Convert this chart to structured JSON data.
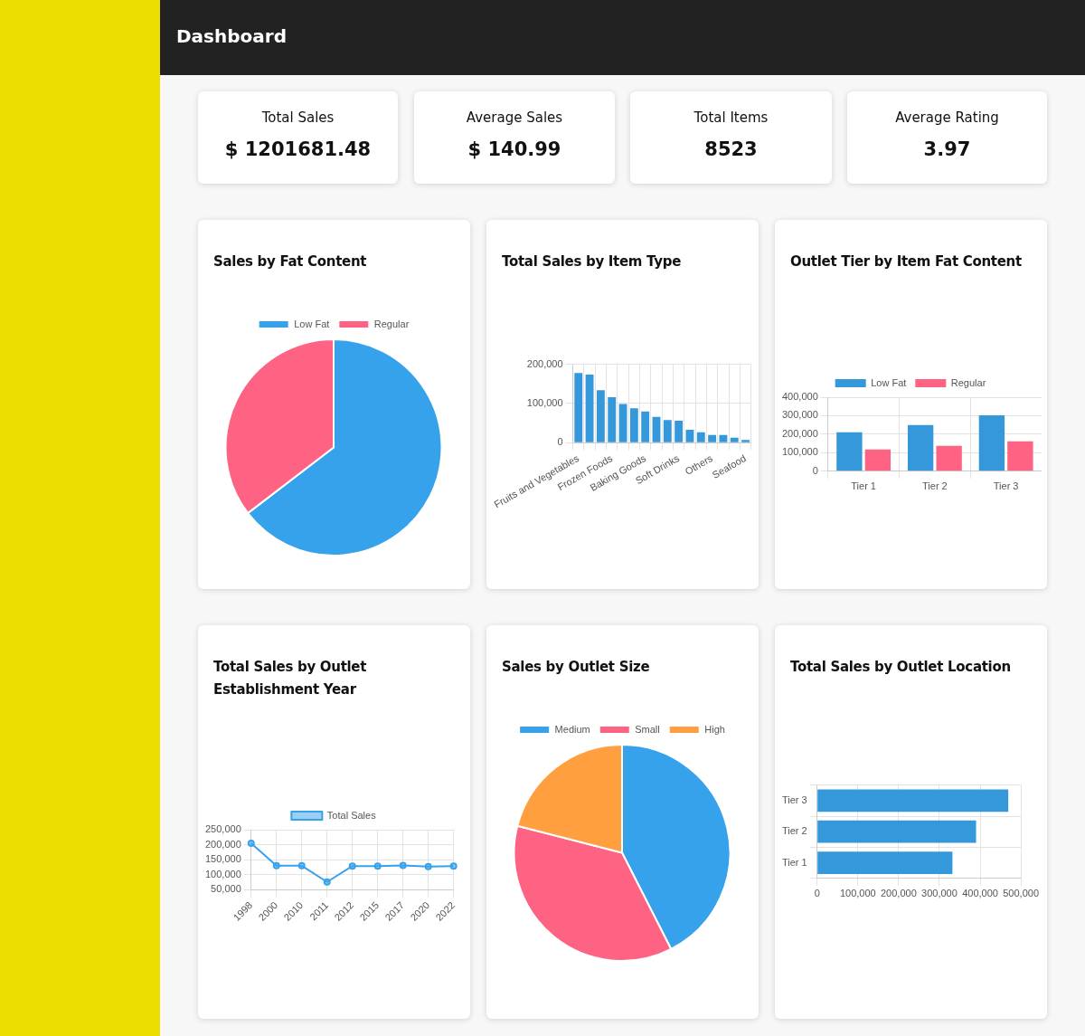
{
  "chart_data": [
    {
      "type": "other",
      "title": "Dashboard"
    },
    {
      "type": "other",
      "title": "Total Sales",
      "annotations": [
        "$ 1201681.48"
      ]
    },
    {
      "type": "other",
      "title": "Average Sales",
      "annotations": [
        "$ 140.99"
      ]
    },
    {
      "type": "other",
      "title": "Total Items",
      "annotations": [
        "8523"
      ]
    },
    {
      "type": "other",
      "title": "Average Rating",
      "annotations": [
        "3.97"
      ]
    },
    {
      "type": "pie",
      "title": "Sales by Fat Content",
      "categories": [
        "Low Fat",
        "Regular"
      ],
      "values": [
        64.6,
        35.4
      ],
      "colors": [
        "#36a2eb",
        "#ff6384"
      ],
      "legend": "top"
    },
    {
      "type": "bar",
      "title": "Total Sales by Item Type",
      "categories": [
        "Fruits and Vegetables",
        null,
        null,
        "Frozen Foods",
        null,
        null,
        "Baking Goods",
        null,
        null,
        "Soft Drinks",
        null,
        null,
        "Others",
        null,
        null,
        "Seafood"
      ],
      "values": [
        178000,
        174000,
        134000,
        116000,
        99000,
        88000,
        80000,
        66000,
        58000,
        56000,
        33000,
        27000,
        20000,
        20000,
        13000,
        7000
      ],
      "color": "#3498db",
      "ylim": [
        0,
        200000
      ],
      "yticks": [
        0,
        {
          "value": 100000,
          "label": "100,000"
        },
        {
          "value": 200000,
          "label": "200,000"
        }
      ],
      "grid": true,
      "legend": false
    },
    {
      "type": "bar",
      "title": "Outlet Tier by Item Fat Content",
      "categories": [
        "Tier 1",
        "Tier 2",
        "Tier 3"
      ],
      "series": [
        {
          "name": "Low Fat",
          "color": "#3498db",
          "values": [
            210000,
            250000,
            302000
          ]
        },
        {
          "name": "Regular",
          "color": "#ff6384",
          "values": [
            117000,
            137000,
            162000
          ]
        }
      ],
      "ylim": [
        0,
        400000
      ],
      "yticks": [
        0,
        {
          "value": 100000,
          "label": "100,000"
        },
        {
          "value": 200000,
          "label": "200,000"
        },
        {
          "value": 300000,
          "label": "300,000"
        },
        {
          "value": 400000,
          "label": "400,000"
        }
      ],
      "grid": true,
      "legend": "top"
    },
    {
      "type": "line",
      "title": "Total Sales by Outlet Establishment Year",
      "categories": [
        "1998",
        "2000",
        "2010",
        "2011",
        "2012",
        "2015",
        "2017",
        "2020",
        "2022"
      ],
      "series": [
        {
          "name": "Total Sales",
          "color": "#36a2eb",
          "values": [
            205000,
            130000,
            130000,
            76000,
            129000,
            129000,
            131000,
            127000,
            129000
          ]
        }
      ],
      "ylim": [
        50000,
        250000
      ],
      "yticks": [
        {
          "value": 50000,
          "label": "50,000"
        },
        {
          "value": 100000,
          "label": "100,000"
        },
        {
          "value": 150000,
          "label": "150,000"
        },
        {
          "value": 200000,
          "label": "200,000"
        },
        {
          "value": 250000,
          "label": "250,000"
        }
      ],
      "grid": true,
      "legend": "top",
      "marker": "circle",
      "line_style": "solid"
    },
    {
      "type": "pie",
      "title": "Sales by Outlet Size",
      "categories": [
        "Medium",
        "Small",
        "High"
      ],
      "values": [
        42.5,
        36.5,
        21.0
      ],
      "colors": [
        "#36a2eb",
        "#ff6384",
        "#ff9f40"
      ],
      "legend": "top"
    },
    {
      "type": "bar",
      "title": "Total Sales by Outlet Location",
      "orientation": "horizontal",
      "categories": [
        "Tier 3",
        "Tier 2",
        "Tier 1"
      ],
      "values": [
        469000,
        390000,
        332000
      ],
      "color": "#3498db",
      "xlim": [
        0,
        500000
      ],
      "xticks": [
        0,
        {
          "value": 100000,
          "label": "100,000"
        },
        {
          "value": 200000,
          "label": "200,000"
        },
        {
          "value": 300000,
          "label": "300,000"
        },
        {
          "value": 400000,
          "label": "400,000"
        },
        {
          "value": 500000,
          "label": "500,000"
        }
      ],
      "grid": true,
      "legend": false
    }
  ]
}
